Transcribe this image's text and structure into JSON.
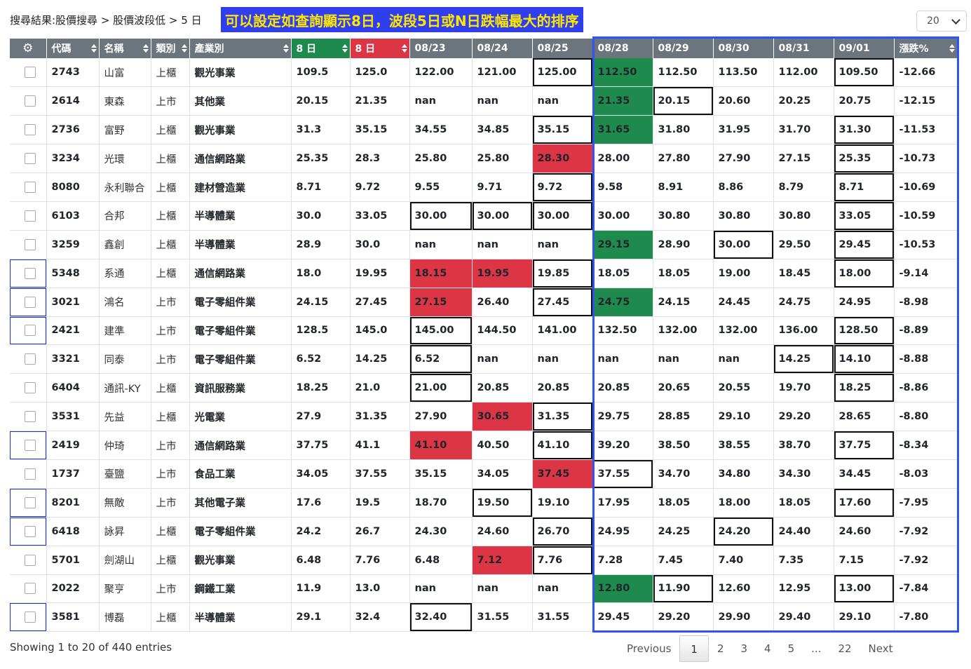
{
  "header": {
    "breadcrumb": "搜尋結果:股價搜尋 > 股價波段低 > 5 日",
    "note": "可以設定如查詢顯示8日，波段5日或N日跌幅最大的排序",
    "page_size": "20"
  },
  "columns": [
    "代碼",
    "名稱",
    "類別",
    "產業別",
    "8 日",
    "8 日",
    "08/23",
    "08/24",
    "08/25",
    "08/28",
    "08/29",
    "08/30",
    "08/31",
    "09/01",
    "漲跌%"
  ],
  "rows": [
    {
      "code": "2743",
      "name": "山富",
      "market": "上櫃",
      "industry": "觀光事業",
      "v8a": "109.5",
      "v8b": "125.0",
      "d": [
        "122.00",
        "121.00",
        "125.00",
        "112.50",
        "112.50",
        "113.50",
        "112.00",
        "109.50"
      ],
      "pct": "-12.66"
    },
    {
      "code": "2614",
      "name": "東森",
      "market": "上市",
      "industry": "其他業",
      "v8a": "20.15",
      "v8b": "21.35",
      "d": [
        "nan",
        "nan",
        "nan",
        "21.35",
        "20.15",
        "20.60",
        "20.25",
        "20.75"
      ],
      "pct": "-12.15"
    },
    {
      "code": "2736",
      "name": "富野",
      "market": "上櫃",
      "industry": "觀光事業",
      "v8a": "31.3",
      "v8b": "35.15",
      "d": [
        "34.55",
        "34.85",
        "35.15",
        "31.65",
        "31.80",
        "31.95",
        "31.70",
        "31.30"
      ],
      "pct": "-11.53"
    },
    {
      "code": "3234",
      "name": "光環",
      "market": "上櫃",
      "industry": "通信網路業",
      "v8a": "25.35",
      "v8b": "28.3",
      "d": [
        "25.80",
        "25.80",
        "28.30",
        "28.00",
        "27.80",
        "27.90",
        "27.15",
        "25.35"
      ],
      "pct": "-10.73"
    },
    {
      "code": "8080",
      "name": "永利聯合",
      "market": "上櫃",
      "industry": "建材營造業",
      "v8a": "8.71",
      "v8b": "9.72",
      "d": [
        "9.55",
        "9.71",
        "9.72",
        "9.58",
        "8.91",
        "8.86",
        "8.79",
        "8.71"
      ],
      "pct": "-10.69"
    },
    {
      "code": "6103",
      "name": "合邦",
      "market": "上櫃",
      "industry": "半導體業",
      "v8a": "30.0",
      "v8b": "33.05",
      "d": [
        "30.00",
        "30.00",
        "30.00",
        "30.00",
        "30.80",
        "30.80",
        "30.80",
        "33.05"
      ],
      "pct": "-10.59"
    },
    {
      "code": "3259",
      "name": "鑫創",
      "market": "上櫃",
      "industry": "半導體業",
      "v8a": "28.9",
      "v8b": "30.0",
      "d": [
        "nan",
        "nan",
        "nan",
        "29.15",
        "28.90",
        "30.00",
        "29.50",
        "29.45"
      ],
      "pct": "-10.53"
    },
    {
      "code": "5348",
      "name": "系通",
      "market": "上櫃",
      "industry": "通信網路業",
      "v8a": "18.0",
      "v8b": "19.95",
      "d": [
        "18.15",
        "19.95",
        "19.85",
        "18.05",
        "18.05",
        "19.00",
        "18.45",
        "18.00"
      ],
      "pct": "-9.14"
    },
    {
      "code": "3021",
      "name": "鴻名",
      "market": "上市",
      "industry": "電子零組件業",
      "v8a": "24.15",
      "v8b": "27.45",
      "d": [
        "27.15",
        "26.40",
        "27.45",
        "24.75",
        "24.15",
        "24.45",
        "24.75",
        "24.95"
      ],
      "pct": "-8.98"
    },
    {
      "code": "2421",
      "name": "建準",
      "market": "上市",
      "industry": "電子零組件業",
      "v8a": "128.5",
      "v8b": "145.0",
      "d": [
        "145.00",
        "144.50",
        "141.00",
        "132.50",
        "132.00",
        "132.00",
        "136.00",
        "128.50"
      ],
      "pct": "-8.89"
    },
    {
      "code": "3321",
      "name": "同泰",
      "market": "上市",
      "industry": "電子零組件業",
      "v8a": "6.52",
      "v8b": "14.25",
      "d": [
        "6.52",
        "nan",
        "nan",
        "nan",
        "nan",
        "nan",
        "14.25",
        "14.10"
      ],
      "pct": "-8.88"
    },
    {
      "code": "6404",
      "name": "通訊-KY",
      "market": "上櫃",
      "industry": "資訊服務業",
      "v8a": "18.25",
      "v8b": "21.0",
      "d": [
        "21.00",
        "20.85",
        "20.85",
        "20.85",
        "20.65",
        "20.55",
        "19.70",
        "18.25"
      ],
      "pct": "-8.86"
    },
    {
      "code": "3531",
      "name": "先益",
      "market": "上櫃",
      "industry": "光電業",
      "v8a": "27.9",
      "v8b": "31.35",
      "d": [
        "27.90",
        "30.65",
        "31.35",
        "29.75",
        "28.85",
        "29.10",
        "29.20",
        "28.65"
      ],
      "pct": "-8.80"
    },
    {
      "code": "2419",
      "name": "仲琦",
      "market": "上市",
      "industry": "通信網路業",
      "v8a": "37.75",
      "v8b": "41.1",
      "d": [
        "41.10",
        "40.50",
        "41.10",
        "39.20",
        "38.50",
        "38.55",
        "38.70",
        "37.75"
      ],
      "pct": "-8.34"
    },
    {
      "code": "1737",
      "name": "臺鹽",
      "market": "上市",
      "industry": "食品工業",
      "v8a": "34.05",
      "v8b": "37.55",
      "d": [
        "35.15",
        "34.05",
        "37.45",
        "37.55",
        "34.70",
        "34.80",
        "34.30",
        "34.45"
      ],
      "pct": "-8.03"
    },
    {
      "code": "8201",
      "name": "無敵",
      "market": "上市",
      "industry": "其他電子業",
      "v8a": "17.6",
      "v8b": "19.5",
      "d": [
        "18.70",
        "19.50",
        "19.10",
        "17.95",
        "18.05",
        "18.00",
        "18.05",
        "17.60"
      ],
      "pct": "-7.95"
    },
    {
      "code": "6418",
      "name": "詠昇",
      "market": "上櫃",
      "industry": "電子零組件業",
      "v8a": "24.2",
      "v8b": "26.7",
      "d": [
        "24.30",
        "24.60",
        "26.70",
        "24.95",
        "24.25",
        "24.20",
        "24.40",
        "24.60"
      ],
      "pct": "-7.92"
    },
    {
      "code": "5701",
      "name": "劍湖山",
      "market": "上櫃",
      "industry": "觀光事業",
      "v8a": "6.48",
      "v8b": "7.76",
      "d": [
        "6.48",
        "7.12",
        "7.76",
        "7.28",
        "7.45",
        "7.40",
        "7.35",
        "7.15"
      ],
      "pct": "-7.92"
    },
    {
      "code": "2022",
      "name": "聚亨",
      "market": "上市",
      "industry": "鋼鐵工業",
      "v8a": "11.9",
      "v8b": "13.0",
      "d": [
        "nan",
        "nan",
        "nan",
        "12.80",
        "11.90",
        "12.60",
        "12.95",
        "13.00"
      ],
      "pct": "-7.84"
    },
    {
      "code": "3581",
      "name": "博磊",
      "market": "上櫃",
      "industry": "半導體業",
      "v8a": "29.1",
      "v8b": "32.4",
      "d": [
        "32.40",
        "31.55",
        "31.55",
        "29.45",
        "29.20",
        "29.90",
        "29.40",
        "29.10"
      ],
      "pct": "-7.80"
    }
  ],
  "footer": {
    "info": "Showing 1 to 20 of 440 entries",
    "pagination": [
      "Previous",
      "1",
      "2",
      "3",
      "4",
      "5",
      "...",
      "22",
      "Next"
    ],
    "current_page": "1"
  },
  "colors": {
    "header_gray": "#6c757d",
    "green": "#1e8a4d",
    "red": "#dc3545",
    "link_blue": "#1e8fd6",
    "highlight_blue": "#2f55f0",
    "note_bg": "#2f3fef",
    "note_text": "#ffe600"
  }
}
